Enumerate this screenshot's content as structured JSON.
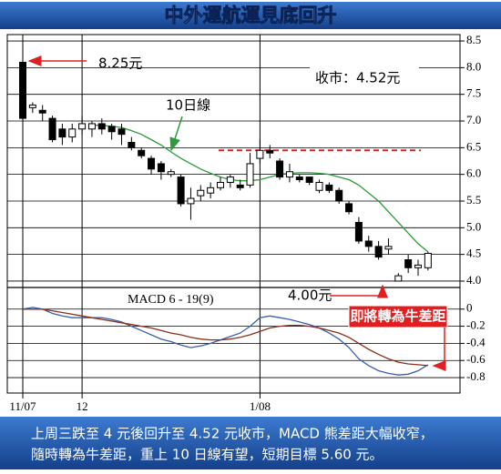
{
  "title": "中外運航運見底回升",
  "chart_data": [
    {
      "type": "candlestick",
      "categories": [
        "11/07",
        null,
        null,
        null,
        null,
        null,
        "12",
        null,
        null,
        null,
        null,
        null,
        null,
        null,
        null,
        null,
        null,
        null,
        null,
        null,
        null,
        null,
        null,
        null,
        "1/08",
        null,
        null,
        null,
        null,
        null,
        null,
        null,
        null,
        null,
        null,
        null,
        null,
        null,
        null,
        null,
        null,
        null
      ],
      "open": [
        8.1,
        7.25,
        7.2,
        7.05,
        6.85,
        6.7,
        6.85,
        6.85,
        6.95,
        6.9,
        6.85,
        6.6,
        6.45,
        6.3,
        6.2,
        6.0,
        5.95,
        5.45,
        5.6,
        5.65,
        5.75,
        5.85,
        5.8,
        5.8,
        6.3,
        6.45,
        6.25,
        5.95,
        5.95,
        5.95,
        5.7,
        5.8,
        5.7,
        5.45,
        5.1,
        4.75,
        4.65,
        4.6,
        4.0,
        4.4,
        4.25,
        4.25
      ],
      "high": [
        8.25,
        7.35,
        7.3,
        7.1,
        6.95,
        6.95,
        7.1,
        7.0,
        7.05,
        6.95,
        6.95,
        6.7,
        6.5,
        6.35,
        6.25,
        6.1,
        6.0,
        5.75,
        5.8,
        5.85,
        5.95,
        6.0,
        5.9,
        6.4,
        6.65,
        6.55,
        6.3,
        6.2,
        6.0,
        5.95,
        5.9,
        5.85,
        5.75,
        5.5,
        5.2,
        4.85,
        4.75,
        4.8,
        4.15,
        4.5,
        4.4,
        4.55
      ],
      "low": [
        7.0,
        7.15,
        7.0,
        6.6,
        6.55,
        6.6,
        6.75,
        6.7,
        6.75,
        6.65,
        6.55,
        6.45,
        6.3,
        6.0,
        5.9,
        5.95,
        5.4,
        5.15,
        5.5,
        5.55,
        5.7,
        5.75,
        5.7,
        5.75,
        6.2,
        6.3,
        5.9,
        5.85,
        5.85,
        5.8,
        5.65,
        5.65,
        5.45,
        5.25,
        4.7,
        4.55,
        4.4,
        4.5,
        4.0,
        4.15,
        4.1,
        4.2
      ],
      "close": [
        7.05,
        7.3,
        7.15,
        6.65,
        6.7,
        6.85,
        6.95,
        6.95,
        6.85,
        6.8,
        6.75,
        6.5,
        6.35,
        6.1,
        6.05,
        6.05,
        5.45,
        5.55,
        5.7,
        5.75,
        5.85,
        5.95,
        5.75,
        6.2,
        6.45,
        6.4,
        5.95,
        6.05,
        5.9,
        5.85,
        5.85,
        5.7,
        5.5,
        5.3,
        4.75,
        4.65,
        4.45,
        4.65,
        4.1,
        4.25,
        4.3,
        4.52
      ],
      "series": [
        {
          "name": "10日線",
          "color": "#2e9a3a",
          "values": [
            null,
            null,
            null,
            null,
            null,
            null,
            null,
            6.92,
            6.92,
            6.9,
            6.88,
            6.82,
            6.75,
            6.65,
            6.55,
            6.42,
            6.3,
            6.2,
            6.1,
            6.02,
            5.95,
            5.9,
            5.88,
            5.88,
            5.9,
            5.95,
            6.0,
            6.02,
            6.03,
            6.03,
            6.02,
            6.0,
            5.95,
            5.9,
            5.8,
            5.65,
            5.5,
            5.3,
            5.1,
            4.9,
            4.7,
            4.55
          ]
        }
      ],
      "ylim": [
        3.88,
        8.62
      ],
      "yticks": [
        8.5,
        {
          "value": 8,
          "label": "8.0"
        },
        7.5,
        {
          "value": 7,
          "label": "7.0"
        },
        6.5,
        {
          "value": 6,
          "label": "6.0"
        },
        5.5,
        {
          "value": 5,
          "label": "5.0"
        },
        4.5,
        {
          "value": 4,
          "label": "4.0"
        }
      ],
      "grid": true,
      "reference_line": {
        "value": 6.45,
        "color": "#e02020"
      },
      "annotations": [
        "8.25元",
        "收市：4.52元",
        "4.00元"
      ]
    },
    {
      "type": "line",
      "label": "MACD 6 - 19(9)",
      "series": [
        {
          "color": "#3a5fb0",
          "values": [
            0.0,
            0.02,
            0.0,
            -0.05,
            -0.08,
            -0.1,
            -0.1,
            -0.1,
            -0.1,
            -0.12,
            -0.15,
            -0.2,
            -0.25,
            -0.3,
            -0.35,
            -0.38,
            -0.42,
            -0.45,
            -0.43,
            -0.4,
            -0.36,
            -0.32,
            -0.28,
            -0.2,
            -0.1,
            -0.08,
            -0.1,
            -0.12,
            -0.15,
            -0.18,
            -0.22,
            -0.28,
            -0.35,
            -0.45,
            -0.58,
            -0.66,
            -0.72,
            -0.75,
            -0.77,
            -0.76,
            -0.72,
            -0.65
          ]
        },
        {
          "color": "#8b2f1a",
          "values": [
            0.0,
            0.0,
            0.0,
            -0.02,
            -0.04,
            -0.06,
            -0.08,
            -0.1,
            -0.12,
            -0.14,
            -0.16,
            -0.18,
            -0.2,
            -0.22,
            -0.25,
            -0.28,
            -0.3,
            -0.33,
            -0.35,
            -0.36,
            -0.36,
            -0.35,
            -0.33,
            -0.3,
            -0.26,
            -0.22,
            -0.2,
            -0.19,
            -0.19,
            -0.2,
            -0.22,
            -0.25,
            -0.28,
            -0.33,
            -0.4,
            -0.47,
            -0.53,
            -0.58,
            -0.62,
            -0.64,
            -0.65,
            -0.66
          ]
        }
      ],
      "ylim": [
        -0.98,
        0.21
      ],
      "yticks": [
        0,
        -0.2,
        -0.4,
        -0.6,
        -0.8
      ],
      "grid": true,
      "annotations": [
        "即將轉為牛差距"
      ]
    }
  ],
  "caption": [
    "上周三跌至 4 元後回升至 4.52 元收市，MACD 熊差距大幅收窄，",
    "隨時轉為牛差距，重上 10 日線有望，短期目標 5.60 元。"
  ]
}
